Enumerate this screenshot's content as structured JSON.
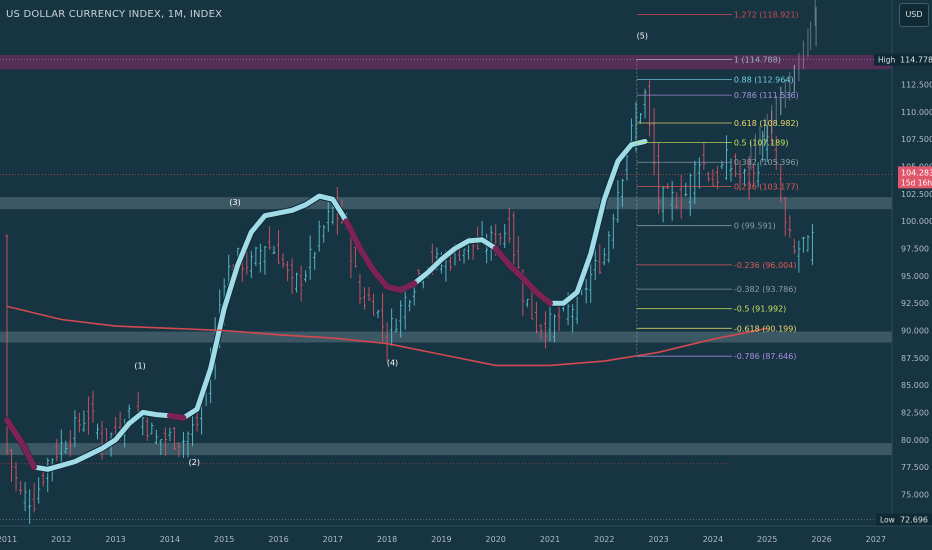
{
  "chart_data": {
    "type": "line",
    "title": "US DOLLAR CURRENCY INDEX, 1M, INDEX",
    "currency": "USD",
    "x_ticks": [
      "2011",
      "2012",
      "2013",
      "2014",
      "2015",
      "2016",
      "2017",
      "2018",
      "2019",
      "2020",
      "2021",
      "2022",
      "2023",
      "2024",
      "2025",
      "2026",
      "2027"
    ],
    "y_ticks": [
      "75.000",
      "77.500",
      "80.000",
      "82.500",
      "85.000",
      "87.500",
      "90.000",
      "92.500",
      "95.000",
      "97.500",
      "100.000",
      "102.500",
      "105.000",
      "107.500",
      "110.000",
      "112.500"
    ],
    "ylim": [
      72.2,
      119.6
    ],
    "xlim": [
      2011.0,
      2027.8
    ],
    "monthly_close_approx": [
      [
        2011.0,
        79.0
      ],
      [
        2011.25,
        75.0
      ],
      [
        2011.5,
        74.5
      ],
      [
        2011.75,
        78.0
      ],
      [
        2012.0,
        79.5
      ],
      [
        2012.25,
        81.0
      ],
      [
        2012.5,
        82.5
      ],
      [
        2012.75,
        80.0
      ],
      [
        2013.0,
        80.5
      ],
      [
        2013.25,
        82.5
      ],
      [
        2013.5,
        82.0
      ],
      [
        2013.75,
        80.0
      ],
      [
        2014.0,
        80.2
      ],
      [
        2014.25,
        80.0
      ],
      [
        2014.5,
        81.5
      ],
      [
        2014.75,
        87.0
      ],
      [
        2015.0,
        95.0
      ],
      [
        2015.25,
        96.5
      ],
      [
        2015.5,
        96.0
      ],
      [
        2015.75,
        98.0
      ],
      [
        2016.0,
        97.0
      ],
      [
        2016.25,
        94.0
      ],
      [
        2016.5,
        95.5
      ],
      [
        2016.75,
        98.5
      ],
      [
        2017.0,
        101.0
      ],
      [
        2017.25,
        99.5
      ],
      [
        2017.5,
        93.0
      ],
      [
        2017.75,
        92.5
      ],
      [
        2018.0,
        89.5
      ],
      [
        2018.25,
        92.0
      ],
      [
        2018.5,
        94.5
      ],
      [
        2018.75,
        96.5
      ],
      [
        2019.0,
        96.0
      ],
      [
        2019.25,
        97.0
      ],
      [
        2019.5,
        98.0
      ],
      [
        2019.75,
        97.5
      ],
      [
        2020.0,
        98.5
      ],
      [
        2020.25,
        99.5
      ],
      [
        2020.5,
        93.5
      ],
      [
        2020.75,
        90.5
      ],
      [
        2021.0,
        90.5
      ],
      [
        2021.25,
        91.5
      ],
      [
        2021.5,
        92.5
      ],
      [
        2021.75,
        95.0
      ],
      [
        2022.0,
        97.0
      ],
      [
        2022.25,
        103.0
      ],
      [
        2022.5,
        108.0
      ],
      [
        2022.75,
        111.5
      ],
      [
        2023.0,
        102.0
      ],
      [
        2023.25,
        102.0
      ],
      [
        2023.5,
        102.5
      ],
      [
        2023.75,
        106.0
      ],
      [
        2024.0,
        103.5
      ],
      [
        2024.25,
        105.5
      ],
      [
        2024.5,
        104.0
      ],
      [
        2024.75,
        104.0
      ],
      [
        2025.0,
        108.5
      ],
      [
        2025.17,
        104.5
      ],
      [
        2025.33,
        99.5
      ],
      [
        2025.5,
        97.0
      ],
      [
        2025.67,
        98.0
      ],
      [
        2025.75,
        97.5
      ],
      [
        2025.85,
        98.5
      ]
    ],
    "series": [
      {
        "name": "ribbon",
        "color": "#a8e6f2",
        "down_color": "#7b2355",
        "points": [
          [
            2011.0,
            81.8
          ],
          [
            2011.3,
            79.5
          ],
          [
            2011.5,
            77.5
          ],
          [
            2011.75,
            77.3
          ],
          [
            2012.25,
            78.0
          ],
          [
            2012.75,
            79.2
          ],
          [
            2013.0,
            80.0
          ],
          [
            2013.25,
            81.5
          ],
          [
            2013.5,
            82.5
          ],
          [
            2013.75,
            82.3
          ],
          [
            2014.0,
            82.2
          ],
          [
            2014.25,
            82.0
          ],
          [
            2014.5,
            82.8
          ],
          [
            2014.75,
            86.5
          ],
          [
            2015.0,
            92.0
          ],
          [
            2015.25,
            96.0
          ],
          [
            2015.5,
            99.0
          ],
          [
            2015.75,
            100.5
          ],
          [
            2016.25,
            101.0
          ],
          [
            2016.5,
            101.5
          ],
          [
            2016.75,
            102.3
          ],
          [
            2017.0,
            102.0
          ],
          [
            2017.25,
            100.0
          ],
          [
            2017.5,
            97.5
          ],
          [
            2017.75,
            95.5
          ],
          [
            2018.0,
            94.0
          ],
          [
            2018.25,
            93.7
          ],
          [
            2018.5,
            94.3
          ],
          [
            2018.75,
            95.3
          ],
          [
            2019.0,
            96.5
          ],
          [
            2019.25,
            97.5
          ],
          [
            2019.5,
            98.2
          ],
          [
            2019.75,
            98.3
          ],
          [
            2020.0,
            97.5
          ],
          [
            2020.25,
            96.0
          ],
          [
            2020.5,
            94.8
          ],
          [
            2020.75,
            93.5
          ],
          [
            2021.0,
            92.5
          ],
          [
            2021.25,
            92.5
          ],
          [
            2021.5,
            93.5
          ],
          [
            2021.75,
            97.0
          ],
          [
            2022.0,
            102.0
          ],
          [
            2022.25,
            105.5
          ],
          [
            2022.5,
            107.0
          ],
          [
            2022.75,
            107.3
          ]
        ],
        "down_segments": [
          [
            2011.0,
            2011.5
          ],
          [
            2014.0,
            2014.3
          ],
          [
            2017.2,
            2018.5
          ],
          [
            2019.9,
            2021.2
          ]
        ]
      },
      {
        "name": "moving-average",
        "color": "#d24a4f",
        "points": [
          [
            2011.0,
            92.2
          ],
          [
            2012.0,
            91.0
          ],
          [
            2013.0,
            90.4
          ],
          [
            2014.0,
            90.2
          ],
          [
            2015.0,
            90.0
          ],
          [
            2016.0,
            89.6
          ],
          [
            2017.0,
            89.3
          ],
          [
            2018.0,
            88.8
          ],
          [
            2019.0,
            87.8
          ],
          [
            2020.0,
            86.8
          ],
          [
            2021.0,
            86.8
          ],
          [
            2022.0,
            87.2
          ],
          [
            2023.0,
            88.0
          ],
          [
            2024.0,
            89.2
          ],
          [
            2025.0,
            90.2
          ]
        ]
      }
    ],
    "fib_levels": [
      {
        "label": "1.272 (118.921)",
        "value": 118.921,
        "color": "#d24a4f"
      },
      {
        "label": "1 (114.788)",
        "value": 114.788,
        "color": "#9ab0c4"
      },
      {
        "label": "0.88 (112.964)",
        "value": 112.964,
        "color": "#6fd2e3"
      },
      {
        "label": "0.786 (111.536)",
        "value": 111.536,
        "color": "#a98ee0"
      },
      {
        "label": "0.618 (108.982)",
        "value": 108.982,
        "color": "#e8d86a"
      },
      {
        "label": "0.5 (107.189)",
        "value": 107.189,
        "color": "#c6e35a"
      },
      {
        "label": "0.382 (105.396)",
        "value": 105.396,
        "color": "#8f9ea7"
      },
      {
        "label": "0.236 (103.177)",
        "value": 103.177,
        "color": "#e05a5a"
      },
      {
        "label": "0 (99.591)",
        "value": 99.591,
        "color": "#8f9ea7"
      },
      {
        "label": "-0.236 (96.004)",
        "value": 96.004,
        "color": "#e05a5a"
      },
      {
        "label": "-0.382 (93.786)",
        "value": 93.786,
        "color": "#8f9ea7"
      },
      {
        "label": "-0.5 (91.992)",
        "value": 91.992,
        "color": "#c6e35a"
      },
      {
        "label": "-0.618 (90.199)",
        "value": 90.199,
        "color": "#e8d86a"
      },
      {
        "label": "-0.786 (87.646)",
        "value": 87.646,
        "color": "#a98ee0"
      }
    ],
    "annotations": [
      {
        "text": "(1)",
        "x": 2013.45,
        "y": 86.5
      },
      {
        "text": "(2)",
        "x": 2014.45,
        "y": 77.7
      },
      {
        "text": "(3)",
        "x": 2015.2,
        "y": 101.5
      },
      {
        "text": "(4)",
        "x": 2018.1,
        "y": 86.8
      },
      {
        "text": "(5)",
        "x": 2022.7,
        "y": 116.7
      }
    ],
    "zones": [
      {
        "name": "resistance-zone",
        "y0": 113.9,
        "y1": 115.2,
        "color": "#6a2c5e"
      },
      {
        "name": "zone-mid",
        "y0": 101.1,
        "y1": 102.2,
        "color": "#4a6470"
      },
      {
        "name": "zone-90",
        "y0": 88.9,
        "y1": 89.9,
        "color": "#4a6470"
      },
      {
        "name": "zone-79",
        "y0": 78.6,
        "y1": 79.7,
        "color": "#4a6470"
      }
    ],
    "high": {
      "label": "High",
      "value": "114.778",
      "v": 114.778
    },
    "low": {
      "label": "Low",
      "value": "72.696",
      "v": 72.696
    },
    "last_price": {
      "value": "104.283",
      "countdown": "15d 16h",
      "v": 104.283
    },
    "forecast": [
      [
        2024.7,
        106.0
      ],
      [
        2025.0,
        108.5
      ],
      [
        2025.25,
        111.0
      ],
      [
        2025.5,
        113.0
      ],
      [
        2025.8,
        117.0
      ],
      [
        2025.9,
        119.6
      ]
    ]
  }
}
